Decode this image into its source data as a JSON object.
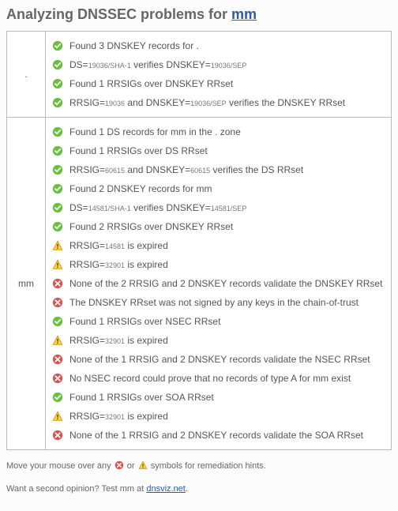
{
  "colors": {
    "ok": "#6abf3f",
    "warn_fill": "#ffd24a",
    "warn_stroke": "#c79b00",
    "err": "#d9534f",
    "link": "#2e5aa8"
  },
  "heading_prefix": "Analyzing DNSSEC problems for ",
  "heading_link_text": "mm",
  "zones": [
    {
      "label": ".",
      "items": [
        {
          "status": "ok",
          "segments": [
            {
              "t": "Found 3 DNSKEY records for ."
            }
          ]
        },
        {
          "status": "ok",
          "segments": [
            {
              "t": "DS="
            },
            {
              "t": "19036/SHA-1",
              "sub": true
            },
            {
              "t": " verifies DNSKEY="
            },
            {
              "t": "19036/SEP",
              "sub": true
            }
          ]
        },
        {
          "status": "ok",
          "segments": [
            {
              "t": "Found 1 RRSIGs over DNSKEY RRset"
            }
          ]
        },
        {
          "status": "ok",
          "segments": [
            {
              "t": "RRSIG="
            },
            {
              "t": "19036",
              "sub": true
            },
            {
              "t": " and DNSKEY="
            },
            {
              "t": "19036/SEP",
              "sub": true
            },
            {
              "t": " verifies the DNSKEY RRset"
            }
          ]
        }
      ]
    },
    {
      "label": "mm",
      "items": [
        {
          "status": "ok",
          "segments": [
            {
              "t": "Found 1 DS records for mm in the . zone"
            }
          ]
        },
        {
          "status": "ok",
          "segments": [
            {
              "t": "Found 1 RRSIGs over DS RRset"
            }
          ]
        },
        {
          "status": "ok",
          "segments": [
            {
              "t": "RRSIG="
            },
            {
              "t": "60615",
              "sub": true
            },
            {
              "t": " and DNSKEY="
            },
            {
              "t": "60615",
              "sub": true
            },
            {
              "t": " verifies the DS RRset"
            }
          ]
        },
        {
          "status": "ok",
          "segments": [
            {
              "t": "Found 2 DNSKEY records for mm"
            }
          ]
        },
        {
          "status": "ok",
          "segments": [
            {
              "t": "DS="
            },
            {
              "t": "14581/SHA-1",
              "sub": true
            },
            {
              "t": " verifies DNSKEY="
            },
            {
              "t": "14581/SEP",
              "sub": true
            }
          ]
        },
        {
          "status": "ok",
          "segments": [
            {
              "t": "Found 2 RRSIGs over DNSKEY RRset"
            }
          ]
        },
        {
          "status": "warn",
          "segments": [
            {
              "t": "RRSIG="
            },
            {
              "t": "14581",
              "sub": true
            },
            {
              "t": " is expired"
            }
          ]
        },
        {
          "status": "warn",
          "segments": [
            {
              "t": "RRSIG="
            },
            {
              "t": "32901",
              "sub": true
            },
            {
              "t": " is expired"
            }
          ]
        },
        {
          "status": "err",
          "segments": [
            {
              "t": "None of the 2 RRSIG and 2 DNSKEY records validate the DNSKEY RRset"
            }
          ]
        },
        {
          "status": "err",
          "segments": [
            {
              "t": "The DNSKEY RRset was not signed by any keys in the chain-of-trust"
            }
          ]
        },
        {
          "status": "ok",
          "segments": [
            {
              "t": "Found 1 RRSIGs over NSEC RRset"
            }
          ]
        },
        {
          "status": "warn",
          "segments": [
            {
              "t": "RRSIG="
            },
            {
              "t": "32901",
              "sub": true
            },
            {
              "t": " is expired"
            }
          ]
        },
        {
          "status": "err",
          "segments": [
            {
              "t": "None of the 1 RRSIG and 2 DNSKEY records validate the NSEC RRset"
            }
          ]
        },
        {
          "status": "err",
          "segments": [
            {
              "t": "No NSEC record could prove that no records of type A for mm exist"
            }
          ]
        },
        {
          "status": "ok",
          "segments": [
            {
              "t": "Found 1 RRSIGs over SOA RRset"
            }
          ]
        },
        {
          "status": "warn",
          "segments": [
            {
              "t": "RRSIG="
            },
            {
              "t": "32901",
              "sub": true
            },
            {
              "t": " is expired"
            }
          ]
        },
        {
          "status": "err",
          "segments": [
            {
              "t": "None of the 1 RRSIG and 2 DNSKEY records validate the SOA RRset"
            }
          ]
        }
      ]
    }
  ],
  "footer_hint_before": "Move your mouse over any ",
  "footer_hint_mid": " or ",
  "footer_hint_after": " symbols for remediation hints.",
  "footer_test_before": "Want a second opinion? Test mm at ",
  "footer_test_link": "dnsviz.net",
  "footer_test_after": "."
}
